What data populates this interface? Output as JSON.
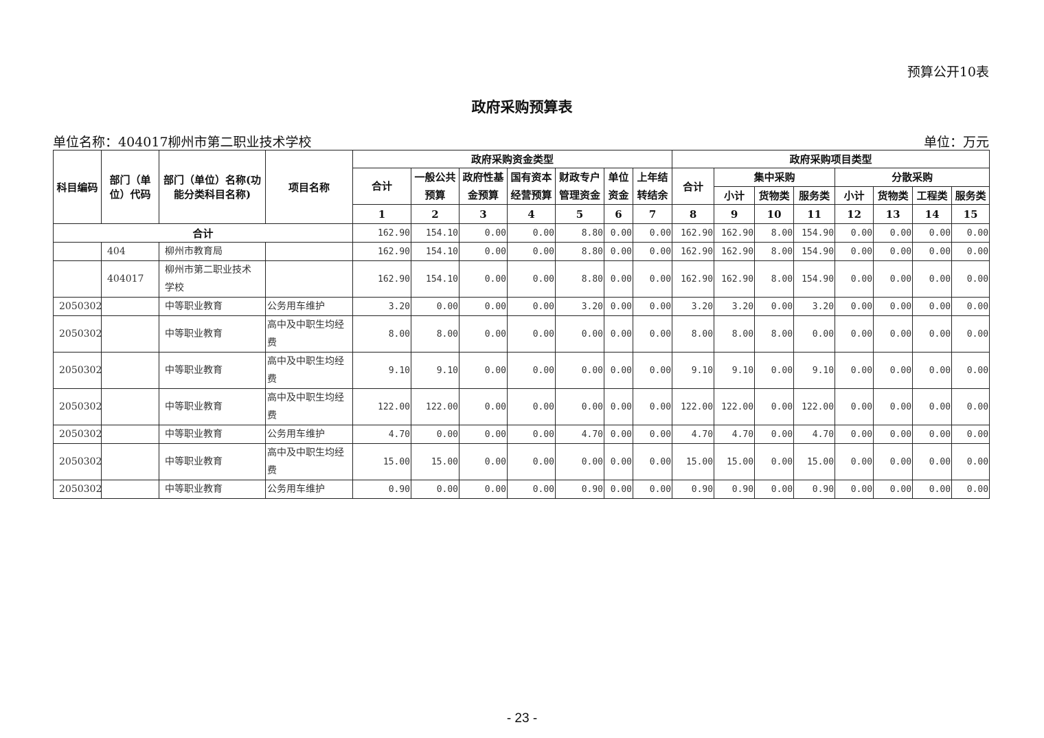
{
  "doc": {
    "tag": "预算公开10表",
    "title": "政府采购预算表",
    "unit_name": "单位名称：404017柳州市第二职业技术学校",
    "unit": "单位：万元",
    "page": "- 23 -"
  },
  "header": {
    "code": "科目编码",
    "dept_code": "部门（单位）代码",
    "dept_name": "部门（单位）名称(功能分类科目名称)",
    "project": "项目名称",
    "fund_group": "政府采购资金类型",
    "project_group": "政府采购项目类型",
    "fund_cols": [
      "合计",
      "一般公共预算",
      "政府性基金预算",
      "国有资本经营预算",
      "财政专户管理资金",
      "单位资金",
      "上年结转结余"
    ],
    "proj_total": "合计",
    "central": "集中采购",
    "dispersed": "分散采购",
    "central_cols": [
      "小计",
      "货物类",
      "服务类"
    ],
    "dispersed_cols": [
      "小计",
      "货物类",
      "工程类",
      "服务类"
    ],
    "numbers": [
      "1",
      "2",
      "3",
      "4",
      "5",
      "6",
      "7",
      "8",
      "9",
      "10",
      "11",
      "12",
      "13",
      "14",
      "15"
    ]
  },
  "total": {
    "label": "合计",
    "values": [
      "162.90",
      "154.10",
      "0.00",
      "0.00",
      "8.80",
      "0.00",
      "0.00",
      "162.90",
      "162.90",
      "8.00",
      "154.90",
      "0.00",
      "0.00",
      "0.00",
      "0.00"
    ]
  },
  "rows": [
    {
      "code": "",
      "dept_code": "404",
      "dept_name": "柳州市教育局",
      "project": "",
      "values": [
        "162.90",
        "154.10",
        "0.00",
        "0.00",
        "8.80",
        "0.00",
        "0.00",
        "162.90",
        "162.90",
        "8.00",
        "154.90",
        "0.00",
        "0.00",
        "0.00",
        "0.00"
      ]
    },
    {
      "code": "",
      "dept_code": "404017",
      "dept_name": "柳州市第二职业技术学校",
      "project": "",
      "values": [
        "162.90",
        "154.10",
        "0.00",
        "0.00",
        "8.80",
        "0.00",
        "0.00",
        "162.90",
        "162.90",
        "8.00",
        "154.90",
        "0.00",
        "0.00",
        "0.00",
        "0.00"
      ]
    },
    {
      "code": "2050302",
      "dept_code": "",
      "dept_name": "中等职业教育",
      "project": "公务用车维护",
      "values": [
        "3.20",
        "0.00",
        "0.00",
        "0.00",
        "3.20",
        "0.00",
        "0.00",
        "3.20",
        "3.20",
        "0.00",
        "3.20",
        "0.00",
        "0.00",
        "0.00",
        "0.00"
      ]
    },
    {
      "code": "2050302",
      "dept_code": "",
      "dept_name": "中等职业教育",
      "project": "高中及中职生均经费",
      "values": [
        "8.00",
        "8.00",
        "0.00",
        "0.00",
        "0.00",
        "0.00",
        "0.00",
        "8.00",
        "8.00",
        "8.00",
        "0.00",
        "0.00",
        "0.00",
        "0.00",
        "0.00"
      ]
    },
    {
      "code": "2050302",
      "dept_code": "",
      "dept_name": "中等职业教育",
      "project": "高中及中职生均经费",
      "values": [
        "9.10",
        "9.10",
        "0.00",
        "0.00",
        "0.00",
        "0.00",
        "0.00",
        "9.10",
        "9.10",
        "0.00",
        "9.10",
        "0.00",
        "0.00",
        "0.00",
        "0.00"
      ]
    },
    {
      "code": "2050302",
      "dept_code": "",
      "dept_name": "中等职业教育",
      "project": "高中及中职生均经费",
      "values": [
        "122.00",
        "122.00",
        "0.00",
        "0.00",
        "0.00",
        "0.00",
        "0.00",
        "122.00",
        "122.00",
        "0.00",
        "122.00",
        "0.00",
        "0.00",
        "0.00",
        "0.00"
      ]
    },
    {
      "code": "2050302",
      "dept_code": "",
      "dept_name": "中等职业教育",
      "project": "公务用车维护",
      "values": [
        "4.70",
        "0.00",
        "0.00",
        "0.00",
        "4.70",
        "0.00",
        "0.00",
        "4.70",
        "4.70",
        "0.00",
        "4.70",
        "0.00",
        "0.00",
        "0.00",
        "0.00"
      ]
    },
    {
      "code": "2050302",
      "dept_code": "",
      "dept_name": "中等职业教育",
      "project": "高中及中职生均经费",
      "values": [
        "15.00",
        "15.00",
        "0.00",
        "0.00",
        "0.00",
        "0.00",
        "0.00",
        "15.00",
        "15.00",
        "0.00",
        "15.00",
        "0.00",
        "0.00",
        "0.00",
        "0.00"
      ]
    },
    {
      "code": "2050302",
      "dept_code": "",
      "dept_name": "中等职业教育",
      "project": "公务用车维护",
      "values": [
        "0.90",
        "0.00",
        "0.00",
        "0.00",
        "0.90",
        "0.00",
        "0.00",
        "0.90",
        "0.90",
        "0.00",
        "0.90",
        "0.00",
        "0.00",
        "0.00",
        "0.00"
      ]
    }
  ]
}
